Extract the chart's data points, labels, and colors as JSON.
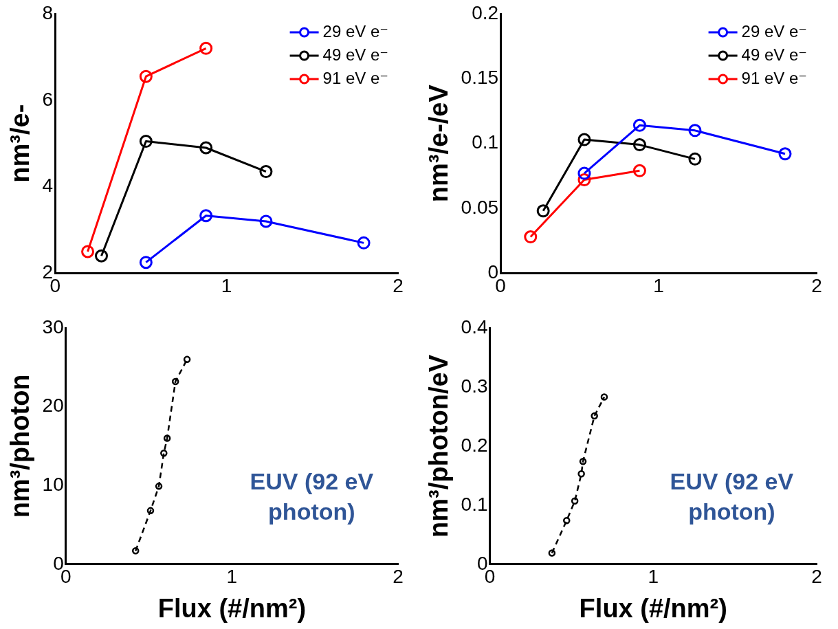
{
  "chart_data": [
    {
      "type": "line",
      "ylabel": "nm³/e-",
      "xlim": [
        0,
        2
      ],
      "xticks": [
        0,
        1,
        2
      ],
      "ylim": [
        2,
        8
      ],
      "yticks": [
        2,
        4,
        6,
        8
      ],
      "legend": "top right",
      "marker": "circle",
      "line_style": "solid",
      "grid": false,
      "series": [
        {
          "name": "29 eV e⁻",
          "color": "#0000ff",
          "x": [
            0.53,
            0.88,
            1.23,
            1.8
          ],
          "values": [
            2.25,
            3.33,
            3.2,
            2.7
          ]
        },
        {
          "name": "49 eV e⁻",
          "color": "#000000",
          "x": [
            0.27,
            0.53,
            0.88,
            1.23
          ],
          "values": [
            2.4,
            5.05,
            4.9,
            4.35
          ]
        },
        {
          "name": "91 eV e⁻",
          "color": "#ff0000",
          "x": [
            0.19,
            0.53,
            0.88
          ],
          "values": [
            2.5,
            6.55,
            7.2
          ]
        }
      ]
    },
    {
      "type": "line",
      "ylabel": "nm³/e-/eV",
      "xlim": [
        0,
        2
      ],
      "xticks": [
        0,
        1,
        2
      ],
      "ylim": [
        0,
        0.2
      ],
      "yticks": [
        0,
        0.05,
        0.1,
        0.15,
        0.2
      ],
      "legend": "top right",
      "marker": "circle",
      "line_style": "solid",
      "grid": false,
      "series": [
        {
          "name": "29 eV e⁻",
          "color": "#0000ff",
          "x": [
            0.53,
            0.88,
            1.23,
            1.8
          ],
          "values": [
            0.077,
            0.114,
            0.11,
            0.092
          ]
        },
        {
          "name": "49 eV e⁻",
          "color": "#000000",
          "x": [
            0.27,
            0.53,
            0.88,
            1.23
          ],
          "values": [
            0.048,
            0.103,
            0.099,
            0.088
          ]
        },
        {
          "name": "91 eV e⁻",
          "color": "#ff0000",
          "x": [
            0.19,
            0.53,
            0.88
          ],
          "values": [
            0.028,
            0.072,
            0.079
          ]
        }
      ]
    },
    {
      "type": "line",
      "xlabel": "Flux (#/nm²)",
      "ylabel": "nm³/photon",
      "xlim": [
        0,
        2
      ],
      "xticks": [
        0,
        1,
        2
      ],
      "ylim": [
        0,
        30
      ],
      "yticks": [
        0,
        10,
        20,
        30
      ],
      "marker": "circle",
      "line_style": "dashed",
      "grid": false,
      "annotations": [
        "EUV (92 eV photon)"
      ],
      "series": [
        {
          "color": "#000000",
          "x": [
            0.42,
            0.51,
            0.56,
            0.59,
            0.61,
            0.66,
            0.73
          ],
          "values": [
            1.7,
            6.8,
            9.9,
            14.1,
            16,
            23.2,
            26
          ]
        }
      ]
    },
    {
      "type": "line",
      "xlabel": "Flux (#/nm²)",
      "ylabel": "nm³/photon/eV",
      "xlim": [
        0,
        2
      ],
      "xticks": [
        0,
        1,
        2
      ],
      "ylim": [
        0,
        0.4
      ],
      "yticks": [
        0,
        0.1,
        0.2,
        0.3,
        0.4
      ],
      "marker": "circle",
      "line_style": "dashed",
      "grid": false,
      "annotations": [
        "EUV (92 eV photon)"
      ],
      "series": [
        {
          "color": "#000000",
          "x": [
            0.38,
            0.47,
            0.52,
            0.56,
            0.57,
            0.64,
            0.7
          ],
          "values": [
            0.019,
            0.074,
            0.107,
            0.153,
            0.174,
            0.251,
            0.283
          ]
        }
      ]
    }
  ]
}
